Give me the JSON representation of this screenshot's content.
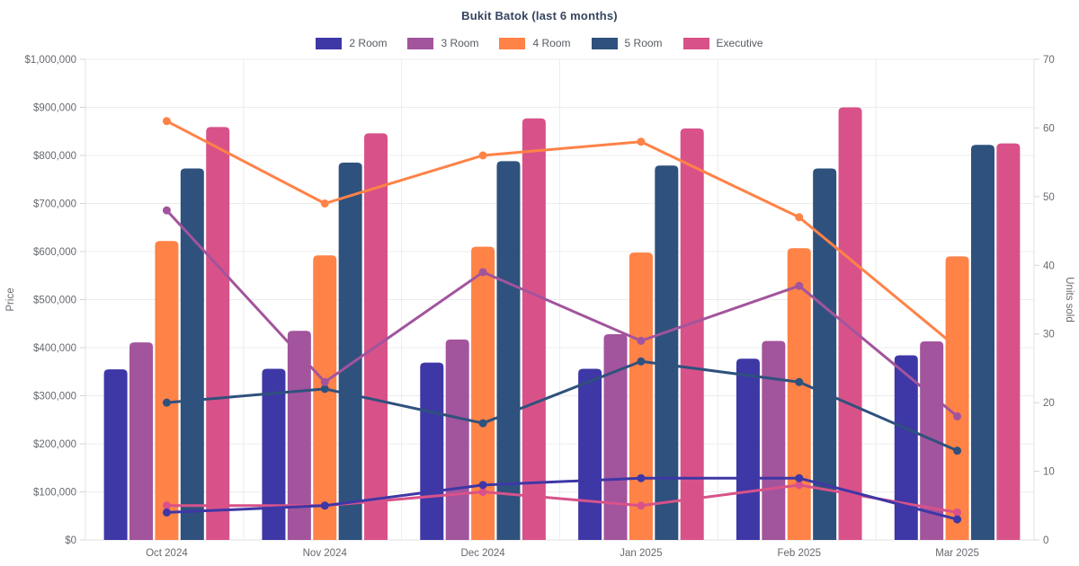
{
  "title": "Bukit Batok (last 6 months)",
  "chart_data": {
    "type": "bar",
    "combo": "grouped bars = resale price (left axis) + lines with point markers = units sold (right axis)",
    "title": "Bukit Batok (last 6 months)",
    "categories": [
      "Oct 2024",
      "Nov 2024",
      "Dec 2024",
      "Jan 2025",
      "Feb 2025",
      "Mar 2025"
    ],
    "series": [
      {
        "name": "2 Room",
        "color": "#3e37a6",
        "price": [
          355000,
          356000,
          369000,
          356000,
          377000,
          384000
        ],
        "units_sold": [
          4,
          5,
          8,
          9,
          9,
          3
        ]
      },
      {
        "name": "3 Room",
        "color": "#a2549d",
        "price": [
          411000,
          435000,
          417000,
          428000,
          414000,
          413000
        ],
        "units_sold": [
          48,
          23,
          39,
          29,
          37,
          18
        ]
      },
      {
        "name": "4 Room",
        "color": "#ff8247",
        "price": [
          622000,
          592000,
          610000,
          598000,
          607000,
          590000
        ],
        "units_sold": [
          61,
          49,
          56,
          58,
          47,
          28
        ]
      },
      {
        "name": "5 Room",
        "color": "#2f517d",
        "price": [
          773000,
          785000,
          788000,
          779000,
          773000,
          822000
        ],
        "units_sold": [
          20,
          22,
          17,
          26,
          23,
          13
        ]
      },
      {
        "name": "Executive",
        "color": "#d85289",
        "price": [
          859000,
          846000,
          877000,
          856000,
          900000,
          825000
        ],
        "units_sold": [
          5,
          5,
          7,
          5,
          8,
          4
        ]
      }
    ],
    "left_axis": {
      "label": "Price",
      "min": 0,
      "max": 1000000,
      "step": 100000,
      "tick_labels": [
        "$0",
        "$100,000",
        "$200,000",
        "$300,000",
        "$400,000",
        "$500,000",
        "$600,000",
        "$700,000",
        "$800,000",
        "$900,000",
        "$1,000,000"
      ]
    },
    "right_axis": {
      "label": "Units sold",
      "min": 0,
      "max": 70,
      "step": 10,
      "tick_labels": [
        "0",
        "10",
        "20",
        "30",
        "40",
        "50",
        "60",
        "70"
      ]
    },
    "grid": true,
    "legend_position": "top",
    "colors": {
      "title_text": "#36455f",
      "tick_text": "#66696f",
      "axis_title_text": "#66696f",
      "legend_text": "#565b62",
      "gridline": "#ececec",
      "axis_border": "#e2e2e2",
      "background": "#ffffff"
    }
  }
}
